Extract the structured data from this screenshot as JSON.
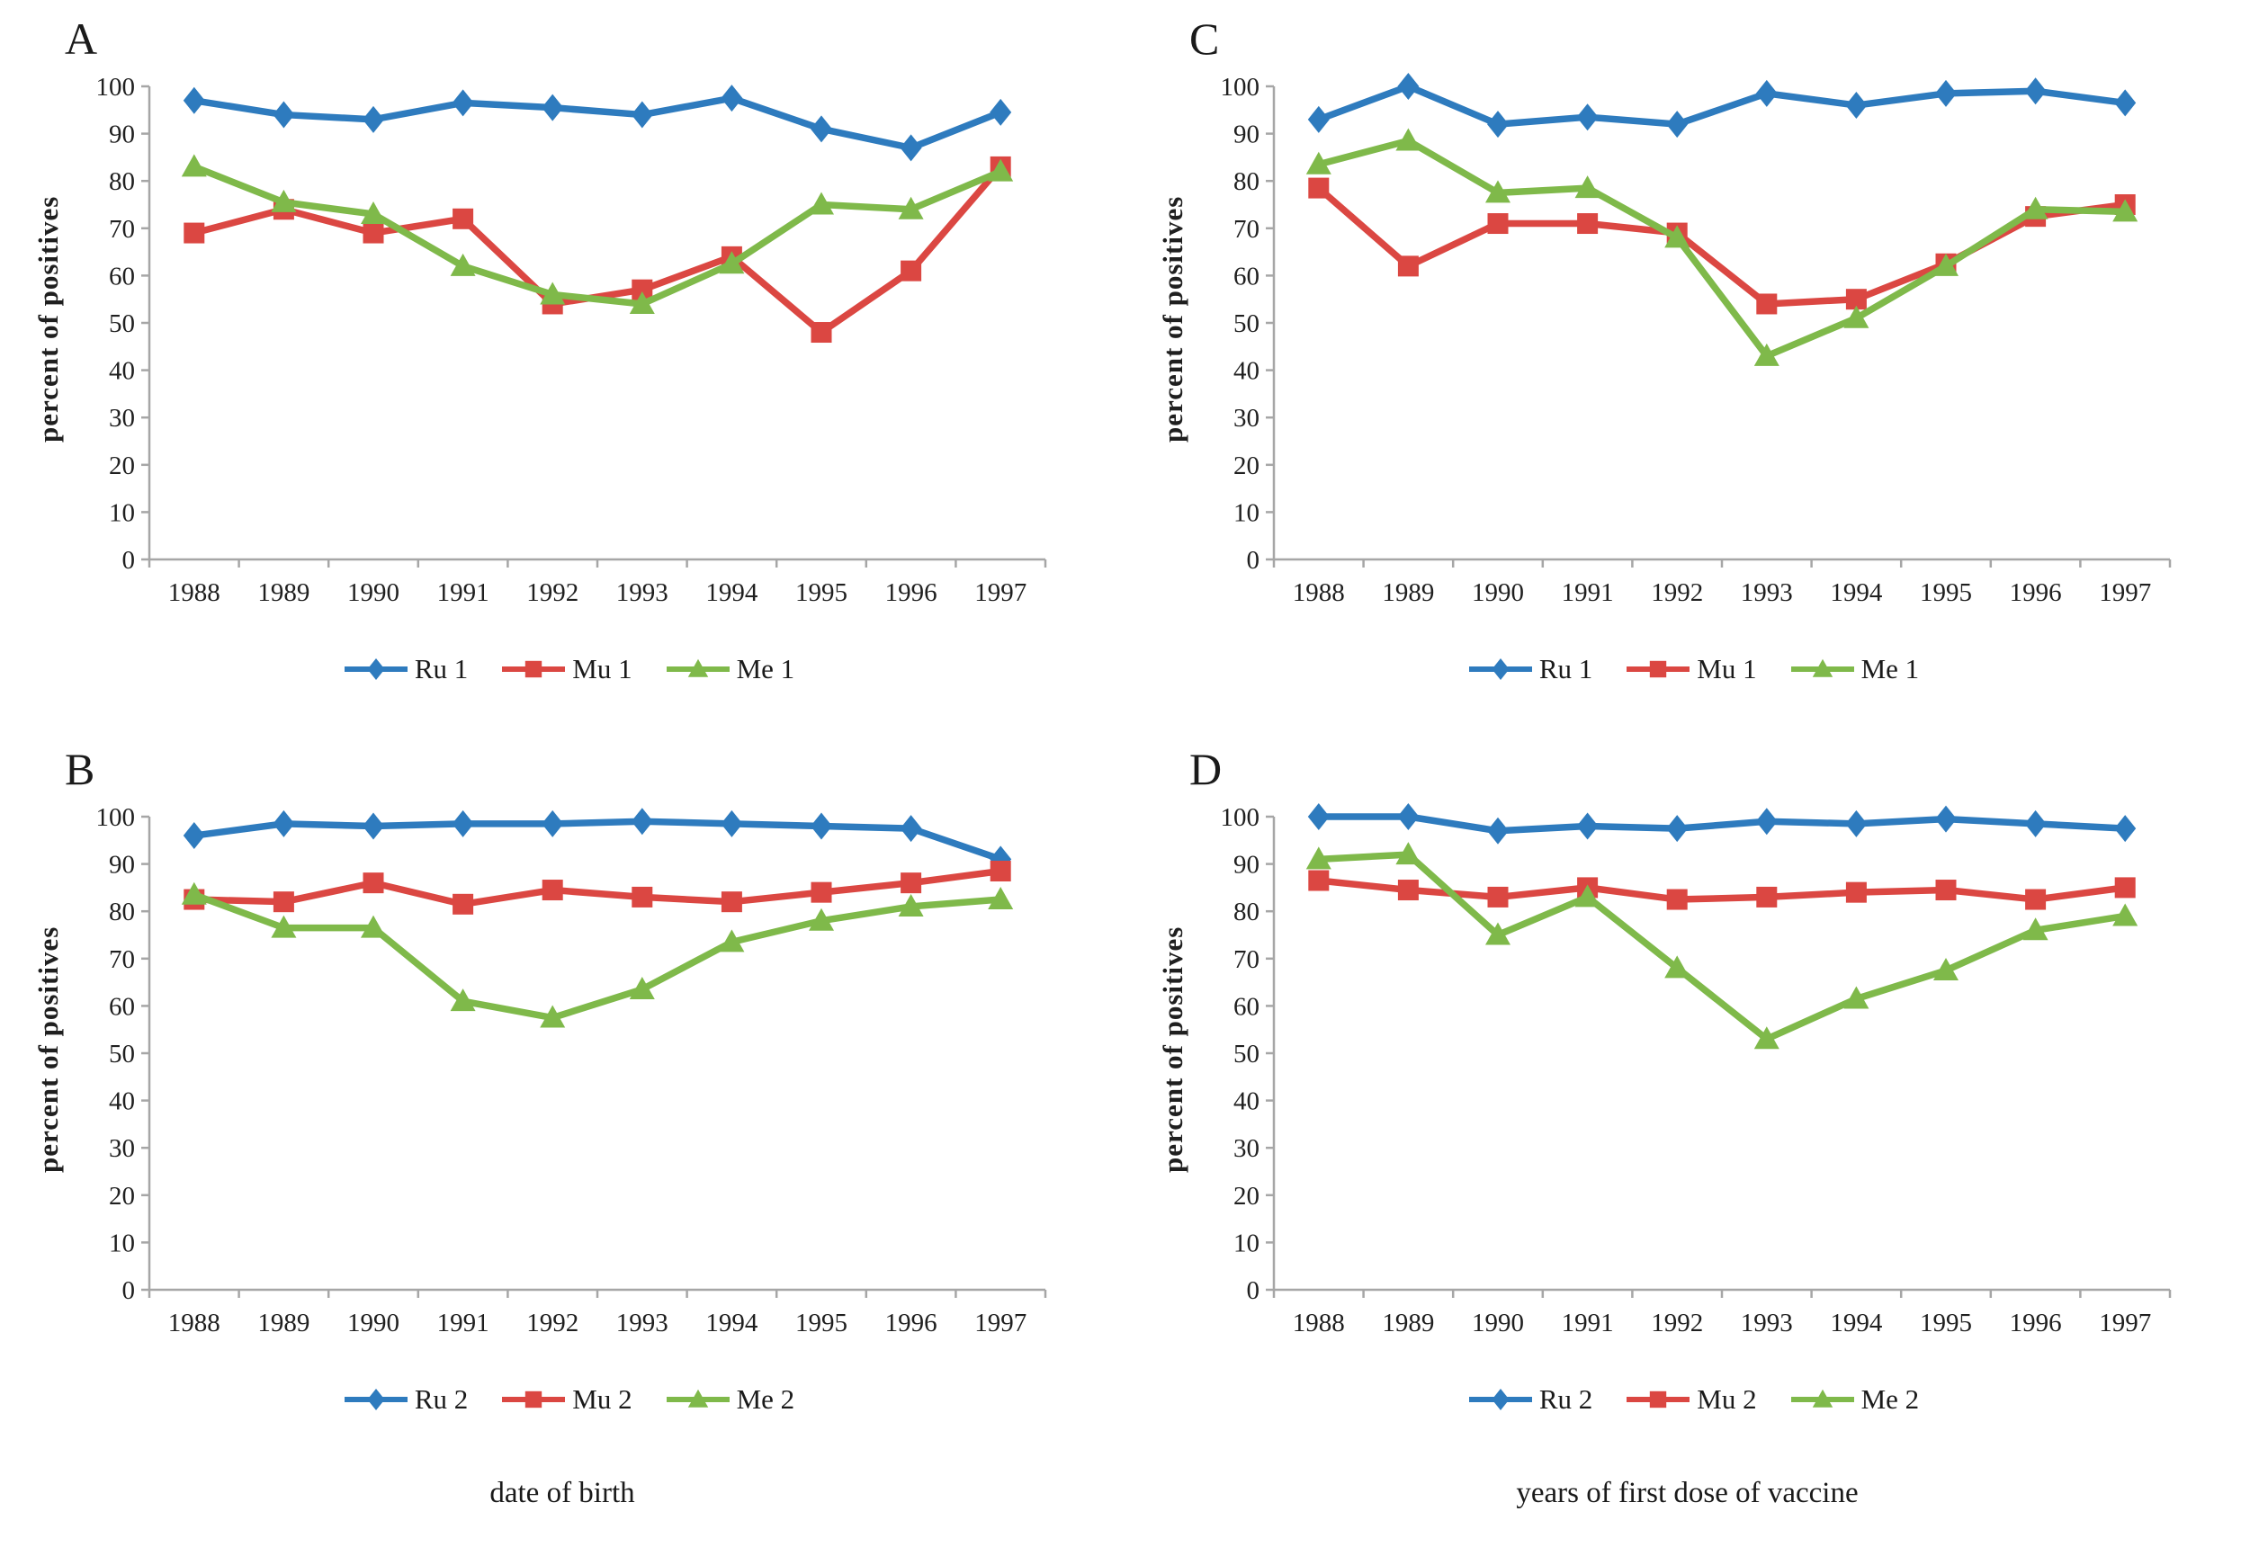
{
  "chart_data": [
    {
      "type": "line",
      "panel": "A",
      "x": [
        "1988",
        "1989",
        "1990",
        "1991",
        "1992",
        "1993",
        "1994",
        "1995",
        "1996",
        "1997"
      ],
      "xlabel": "date of birth",
      "ylabel": "percent of positives",
      "ylim": [
        0,
        100
      ],
      "ytick_step": 10,
      "grid": false,
      "legend_position": "bottom",
      "legend": [
        "Ru 1",
        "Mu 1",
        "Me 1"
      ],
      "series": [
        {
          "name": "Ru 1",
          "marker": "diamond",
          "color": "#2E7BBE",
          "values": [
            97,
            94,
            93,
            96.5,
            95.5,
            94,
            97.5,
            91,
            87,
            94.5
          ]
        },
        {
          "name": "Mu 1",
          "marker": "square",
          "color": "#DB4742",
          "values": [
            69,
            74,
            69,
            72,
            54,
            57,
            64,
            48,
            61,
            83
          ]
        },
        {
          "name": "Me 1",
          "marker": "triangle",
          "color": "#7FB94A",
          "values": [
            83,
            75.5,
            73,
            62,
            56,
            54,
            62.5,
            75,
            74,
            82
          ]
        }
      ]
    },
    {
      "type": "line",
      "panel": "B",
      "x": [
        "1988",
        "1989",
        "1990",
        "1991",
        "1992",
        "1993",
        "1994",
        "1995",
        "1996",
        "1997"
      ],
      "xlabel": "date of birth",
      "ylabel": "percent of positives",
      "ylim": [
        0,
        100
      ],
      "ytick_step": 10,
      "grid": false,
      "legend_position": "bottom",
      "legend": [
        "Ru 2",
        "Mu 2",
        "Me 2"
      ],
      "series": [
        {
          "name": "Ru 2",
          "marker": "diamond",
          "color": "#2E7BBE",
          "values": [
            96,
            98.5,
            98,
            98.5,
            98.5,
            99,
            98.5,
            98,
            97.5,
            91
          ]
        },
        {
          "name": "Mu 2",
          "marker": "square",
          "color": "#DB4742",
          "values": [
            82.5,
            82,
            86,
            81.5,
            84.5,
            83,
            82,
            84,
            86,
            88.5
          ]
        },
        {
          "name": "Me 2",
          "marker": "triangle",
          "color": "#7FB94A",
          "values": [
            83.5,
            76.5,
            76.5,
            61,
            57.5,
            63.5,
            73.5,
            78,
            81,
            82.5
          ]
        }
      ]
    },
    {
      "type": "line",
      "panel": "C",
      "x": [
        "1988",
        "1989",
        "1990",
        "1991",
        "1992",
        "1993",
        "1994",
        "1995",
        "1996",
        "1997"
      ],
      "xlabel": "years of first dose of vaccine",
      "ylabel": "percent of positives",
      "ylim": [
        0,
        100
      ],
      "ytick_step": 10,
      "grid": false,
      "legend_position": "bottom",
      "legend": [
        "Ru 1",
        "Mu 1",
        "Me 1"
      ],
      "series": [
        {
          "name": "Ru 1",
          "marker": "diamond",
          "color": "#2E7BBE",
          "values": [
            93,
            100,
            92,
            93.5,
            92,
            98.5,
            96,
            98.5,
            99,
            96.5
          ]
        },
        {
          "name": "Mu 1",
          "marker": "square",
          "color": "#DB4742",
          "values": [
            78.5,
            62,
            71,
            71,
            69,
            54,
            55,
            62.5,
            72.5,
            75
          ]
        },
        {
          "name": "Me 1",
          "marker": "triangle",
          "color": "#7FB94A",
          "values": [
            83.5,
            88.5,
            77.5,
            78.5,
            68,
            43,
            51,
            62,
            74,
            73.5
          ]
        }
      ]
    },
    {
      "type": "line",
      "panel": "D",
      "x": [
        "1988",
        "1989",
        "1990",
        "1991",
        "1992",
        "1993",
        "1994",
        "1995",
        "1996",
        "1997"
      ],
      "xlabel": "years of first dose of vaccine",
      "ylabel": "percent of positives",
      "ylim": [
        0,
        100
      ],
      "ytick_step": 10,
      "grid": false,
      "legend_position": "bottom",
      "legend": [
        "Ru 2",
        "Mu 2",
        "Me 2"
      ],
      "series": [
        {
          "name": "Ru 2",
          "marker": "diamond",
          "color": "#2E7BBE",
          "values": [
            100,
            100,
            97,
            98,
            97.5,
            99,
            98.5,
            99.5,
            98.5,
            97.5
          ]
        },
        {
          "name": "Mu 2",
          "marker": "square",
          "color": "#DB4742",
          "values": [
            86.5,
            84.5,
            83,
            85,
            82.5,
            83,
            84,
            84.5,
            82.5,
            85
          ]
        },
        {
          "name": "Me 2",
          "marker": "triangle",
          "color": "#7FB94A",
          "values": [
            91,
            92,
            75,
            83,
            68,
            53,
            61.5,
            67.5,
            76,
            79
          ]
        }
      ]
    }
  ],
  "style": {
    "axis_color": "#A6A6A6",
    "text_color": "#1f1f1f",
    "line_width": 7.5
  }
}
